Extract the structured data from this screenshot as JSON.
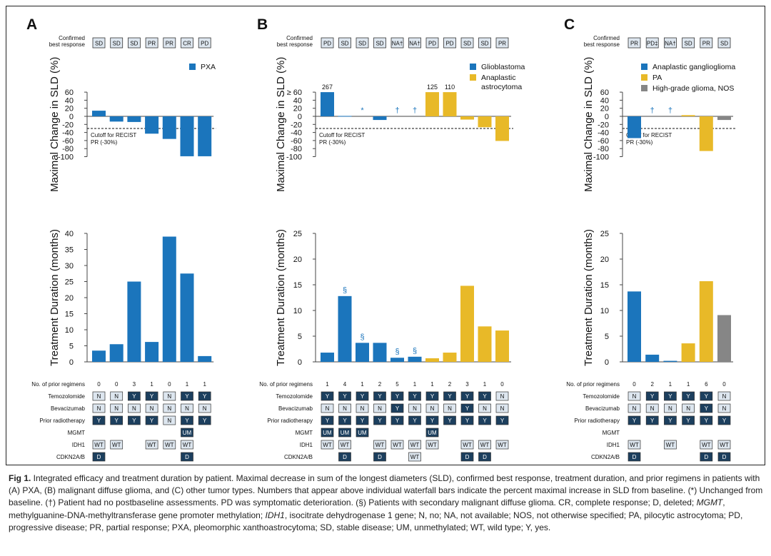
{
  "colors": {
    "blue": "#1b75bc",
    "yellow": "#e8b928",
    "gray": "#868686",
    "cellDark": "#1c3f5e",
    "cellLight": "#dde6ef"
  },
  "labels": {
    "confirmed": "Confirmed",
    "best_response": "best response",
    "y_sld": "Maximal Change in SLD (%)",
    "y_duration": "Treatment Duration (months)",
    "cutoff1": "Cutoff for RECIST",
    "cutoff2": "PR (-30%)",
    "rows": [
      "No. of prior regimens",
      "Temozolomide",
      "Bevacizumab",
      "Prior radiotherapy",
      "MGMT",
      "IDH1",
      "CDKN2A/B"
    ],
    "ge60": "≥ 60"
  },
  "chart_data": [
    {
      "panel": "A",
      "type": "bar",
      "title": "A",
      "ylabel_top": "Maximal Change in SLD (%)",
      "ylim_top": [
        -100,
        60
      ],
      "yticks_top": [
        "60",
        "40",
        "20",
        "0",
        "-20",
        "-40",
        "-60",
        "-80",
        "-100"
      ],
      "ylabel_bottom": "Treatment Duration (months)",
      "ylim_bottom": [
        0,
        40
      ],
      "yticks_bottom": [
        "40",
        "35",
        "30",
        "25",
        "20",
        "15",
        "10",
        "5",
        "0"
      ],
      "legend": [
        {
          "name": "PXA",
          "color": "#1b75bc"
        }
      ],
      "best_response": [
        "SD",
        "SD",
        "SD",
        "PR",
        "PR",
        "CR",
        "PD"
      ],
      "sld": [
        14,
        -13,
        -14,
        -43,
        -56,
        -99,
        -99
      ],
      "sld_colors": [
        "#1b75bc",
        "#1b75bc",
        "#1b75bc",
        "#1b75bc",
        "#1b75bc",
        "#1b75bc",
        "#1b75bc"
      ],
      "sld_annotations": [
        "",
        "",
        "",
        "",
        "",
        "",
        ""
      ],
      "sld_top_labels": [
        "",
        "",
        "",
        "",
        "",
        "",
        ""
      ],
      "duration": [
        3.5,
        5.5,
        25,
        6.2,
        39,
        27.5,
        1.8
      ],
      "dur_colors": [
        "#1b75bc",
        "#1b75bc",
        "#1b75bc",
        "#1b75bc",
        "#1b75bc",
        "#1b75bc",
        "#1b75bc"
      ],
      "dur_annotations": [
        "",
        "",
        "",
        "",
        "",
        "",
        ""
      ],
      "prior_regimens": [
        "0",
        "0",
        "3",
        "1",
        "0",
        "1",
        "1"
      ],
      "temozolomide": [
        "N",
        "N",
        "Y",
        "Y",
        "N",
        "Y",
        "Y"
      ],
      "bevacizumab": [
        "N",
        "N",
        "N",
        "N",
        "N",
        "N",
        "N"
      ],
      "prior_radiotherapy": [
        "Y",
        "Y",
        "Y",
        "Y",
        "N",
        "Y",
        "Y"
      ],
      "mgmt": [
        "",
        "",
        "",
        "",
        "",
        "UM",
        ""
      ],
      "idh1": [
        "WT",
        "WT",
        "",
        "WT",
        "WT",
        "WT",
        ""
      ],
      "cdkn2ab": [
        "D",
        "",
        "",
        "",
        "",
        "D",
        ""
      ]
    },
    {
      "panel": "B",
      "type": "bar",
      "title": "B",
      "ylabel_top": "Maximal Change in SLD (%)",
      "ylim_top": [
        -100,
        60
      ],
      "yticks_top": [
        "≥ 60",
        "40",
        "20",
        "0",
        "-20",
        "-40",
        "-60",
        "-80",
        "-100"
      ],
      "ylabel_bottom": "Treatment Duration (months)",
      "ylim_bottom": [
        0,
        25
      ],
      "yticks_bottom": [
        "25",
        "20",
        "15",
        "10",
        "5",
        "0"
      ],
      "legend": [
        {
          "name": "Glioblastoma",
          "color": "#1b75bc"
        },
        {
          "name": "Anaplastic astrocytoma",
          "color": "#e8b928"
        }
      ],
      "best_response": [
        "PD",
        "SD",
        "SD",
        "SD",
        "NA†",
        "NA†",
        "PD",
        "PD",
        "SD",
        "SD",
        "PR"
      ],
      "sld": [
        60,
        1,
        0,
        -9,
        0,
        0,
        60,
        60,
        -8,
        -27,
        -61
      ],
      "sld_colors": [
        "#1b75bc",
        "#1b75bc",
        "#1b75bc",
        "#1b75bc",
        "#1b75bc",
        "#1b75bc",
        "#e8b928",
        "#e8b928",
        "#e8b928",
        "#e8b928",
        "#e8b928"
      ],
      "sld_annotations": [
        "",
        "",
        "*",
        "",
        "†",
        "†",
        "",
        "",
        "",
        "",
        ""
      ],
      "sld_top_labels": [
        "267",
        "",
        "",
        "",
        "",
        "",
        "125",
        "110",
        "",
        "",
        ""
      ],
      "duration": [
        1.8,
        12.8,
        3.7,
        3.7,
        0.8,
        1.0,
        0.7,
        1.8,
        14.8,
        6.9,
        6.1
      ],
      "dur_colors": [
        "#1b75bc",
        "#1b75bc",
        "#1b75bc",
        "#1b75bc",
        "#1b75bc",
        "#1b75bc",
        "#e8b928",
        "#e8b928",
        "#e8b928",
        "#e8b928",
        "#e8b928"
      ],
      "dur_annotations": [
        "",
        "§",
        "§",
        "",
        "§",
        "§",
        "",
        "",
        "",
        "",
        ""
      ],
      "prior_regimens": [
        "1",
        "4",
        "1",
        "2",
        "5",
        "1",
        "1",
        "2",
        "3",
        "1",
        "0"
      ],
      "temozolomide": [
        "Y",
        "Y",
        "Y",
        "Y",
        "Y",
        "Y",
        "Y",
        "Y",
        "Y",
        "Y",
        "N"
      ],
      "bevacizumab": [
        "N",
        "N",
        "N",
        "N",
        "Y",
        "N",
        "N",
        "N",
        "Y",
        "N",
        "N"
      ],
      "prior_radiotherapy": [
        "Y",
        "Y",
        "Y",
        "Y",
        "Y",
        "Y",
        "Y",
        "Y",
        "Y",
        "Y",
        "Y"
      ],
      "mgmt": [
        "UM",
        "UM",
        "UM",
        "",
        "",
        "",
        "UM",
        "",
        "",
        "",
        ""
      ],
      "idh1": [
        "WT",
        "WT",
        "",
        "WT",
        "WT",
        "WT",
        "WT",
        "",
        "WT",
        "WT",
        "WT"
      ],
      "cdkn2ab": [
        "",
        "D",
        "",
        "D",
        "",
        "WT",
        "",
        "",
        "D",
        "D",
        ""
      ]
    },
    {
      "panel": "C",
      "type": "bar",
      "title": "C",
      "ylabel_top": "Maximal Change in SLD (%)",
      "ylim_top": [
        -100,
        60
      ],
      "yticks_top": [
        "60",
        "40",
        "20",
        "0",
        "-20",
        "-40",
        "-60",
        "-80",
        "-100"
      ],
      "ylabel_bottom": "Treatment Duration (months)",
      "ylim_bottom": [
        0,
        25
      ],
      "yticks_bottom": [
        "25",
        "20",
        "15",
        "10",
        "5",
        "0"
      ],
      "legend": [
        {
          "name": "Anaplastic ganglioglioma",
          "color": "#1b75bc"
        },
        {
          "name": "PA",
          "color": "#e8b928"
        },
        {
          "name": "High-grade glioma, NOS",
          "color": "#868686"
        }
      ],
      "best_response": [
        "PR",
        "PD‡",
        "NA†",
        "SD",
        "PR",
        "SD"
      ],
      "sld": [
        -54,
        0,
        0,
        3,
        -86,
        -9
      ],
      "sld_colors": [
        "#1b75bc",
        "#1b75bc",
        "#1b75bc",
        "#e8b928",
        "#e8b928",
        "#868686"
      ],
      "sld_annotations": [
        "",
        "†",
        "†",
        "",
        "",
        ""
      ],
      "sld_top_labels": [
        "",
        "",
        "",
        "",
        "",
        ""
      ],
      "duration": [
        13.7,
        1.4,
        0.2,
        3.6,
        15.7,
        9.1
      ],
      "dur_colors": [
        "#1b75bc",
        "#1b75bc",
        "#1b75bc",
        "#e8b928",
        "#e8b928",
        "#868686"
      ],
      "dur_annotations": [
        "",
        "",
        "",
        "",
        "",
        ""
      ],
      "prior_regimens": [
        "0",
        "2",
        "1",
        "1",
        "6",
        "0"
      ],
      "temozolomide": [
        "N",
        "Y",
        "Y",
        "Y",
        "Y",
        "N"
      ],
      "bevacizumab": [
        "N",
        "N",
        "N",
        "N",
        "Y",
        "N"
      ],
      "prior_radiotherapy": [
        "Y",
        "Y",
        "Y",
        "Y",
        "Y",
        "Y"
      ],
      "mgmt": [
        "",
        "",
        "",
        "",
        "",
        ""
      ],
      "idh1": [
        "WT",
        "",
        "WT",
        "",
        "WT",
        "WT"
      ],
      "cdkn2ab": [
        "D",
        "",
        "",
        "",
        "D",
        "D"
      ]
    }
  ],
  "caption": {
    "label": "Fig 1.",
    "p1": " Integrated efficacy and treatment duration by patient. Maximal decrease in sum of the longest diameters (SLD), confirmed best response, treatment duration, and prior regimens in patients with (A) PXA, (B) malignant diffuse glioma, and (C) other tumor types. Numbers that appear above individual waterfall bars indicate the percent maximal increase in SLD from baseline. (*) Unchanged from baseline. (†) Patient had no postbaseline assessments. PD was symptomatic deterioration. (§) Patients with secondary malignant diffuse glioma. CR, complete response; D, deleted; ",
    "mgmt": "MGMT",
    "p2": ", methylguanine-DNA-methyltransferase gene promoter methylation; ",
    "idh1": "IDH1",
    "p3": ", isocitrate dehydrogenase 1 gene; N, no; NA, not available; NOS, not otherwise specified; PA, pilocytic astrocytoma; PD, progressive disease; PR, partial response; PXA, pleomorphic xanthoastrocytoma; SD, stable disease; UM, unmethylated; WT, wild type; Y, yes."
  }
}
